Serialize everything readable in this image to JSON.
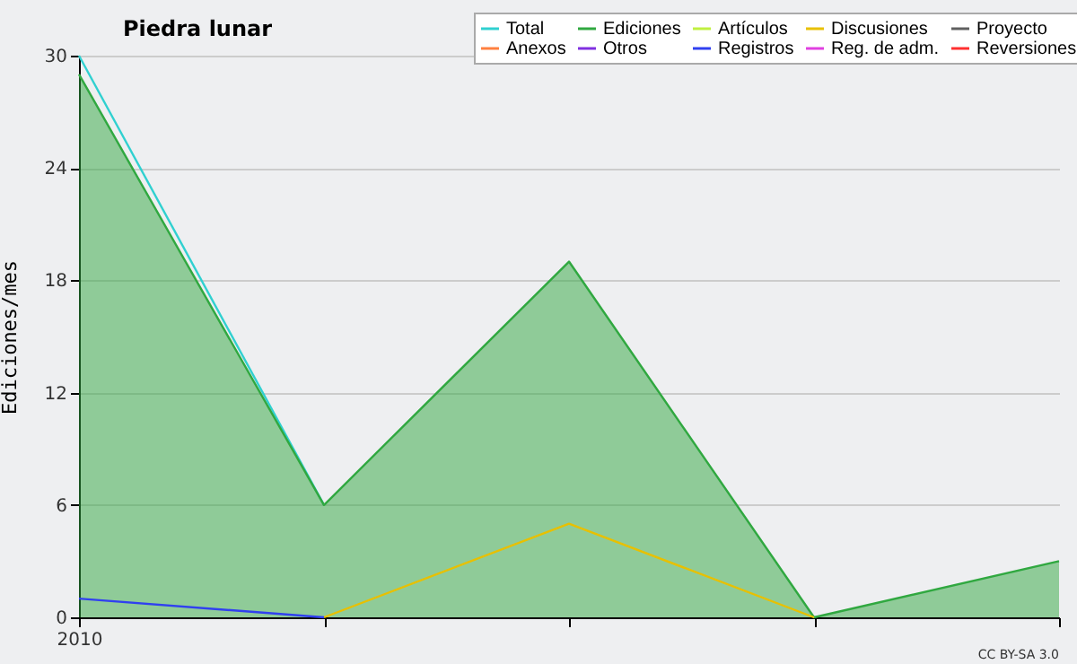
{
  "chart_data": {
    "type": "line",
    "title": "Piedra lunar",
    "ylabel": "Ediciones/mes",
    "categories": [
      "2010",
      null,
      null,
      null,
      null
    ],
    "ylim": [
      0,
      30
    ],
    "yticks": [
      0,
      6,
      12,
      18,
      24,
      30
    ],
    "grid": "y",
    "legend": "top right",
    "annotations": [
      "CC BY-SA 3.0"
    ],
    "series": [
      {
        "name": "Total",
        "color": "#30d0d0",
        "values": [
          30,
          6,
          null,
          null,
          null
        ]
      },
      {
        "name": "Ediciones",
        "type": "area",
        "color": "#30a840",
        "values": [
          29,
          6,
          19,
          0,
          3
        ]
      },
      {
        "name": "Artículos",
        "color": "#c0f040",
        "values": [
          null,
          null,
          null,
          null,
          null
        ]
      },
      {
        "name": "Discusiones",
        "color": "#e8c000",
        "values": [
          null,
          0,
          5,
          0,
          null
        ]
      },
      {
        "name": "Proyecto",
        "color": "#606060",
        "values": [
          null,
          null,
          null,
          null,
          null
        ]
      },
      {
        "name": "Anexos",
        "color": "#ff8040",
        "values": [
          null,
          null,
          null,
          null,
          null
        ]
      },
      {
        "name": "Otros",
        "color": "#8030e0",
        "values": [
          null,
          null,
          null,
          null,
          null
        ]
      },
      {
        "name": "Registros",
        "color": "#3040f0",
        "values": [
          1,
          0,
          null,
          null,
          null
        ]
      },
      {
        "name": "Reg. de adm.",
        "color": "#e040e0",
        "values": [
          null,
          null,
          null,
          null,
          null
        ]
      },
      {
        "name": "Reversiones",
        "color": "#ff3030",
        "values": [
          null,
          null,
          null,
          null,
          null
        ]
      }
    ]
  }
}
